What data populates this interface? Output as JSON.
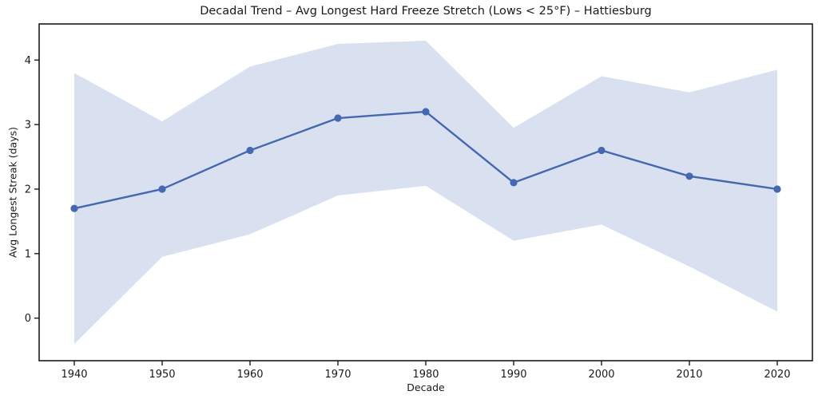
{
  "chart_data": {
    "type": "line",
    "title": "Decadal Trend – Avg Longest Hard Freeze Stretch (Lows < 25°F) – Hattiesburg",
    "xlabel": "Decade",
    "ylabel": "Avg Longest Streak (days)",
    "x": [
      1940,
      1950,
      1960,
      1970,
      1980,
      1990,
      2000,
      2010,
      2020
    ],
    "series": [
      {
        "name": "Avg Longest Streak",
        "values": [
          1.7,
          2.0,
          2.6,
          3.1,
          3.2,
          2.1,
          2.6,
          2.2,
          2.0
        ]
      }
    ],
    "band": {
      "name": "uncertainty-band",
      "upper": [
        3.8,
        3.05,
        3.9,
        4.25,
        4.3,
        2.95,
        3.75,
        3.5,
        3.85
      ],
      "lower": [
        -0.4,
        0.95,
        1.3,
        1.9,
        2.05,
        1.2,
        1.45,
        0.8,
        0.1
      ]
    },
    "xticks": [
      "1940",
      "1950",
      "1960",
      "1970",
      "1980",
      "1990",
      "2000",
      "2010",
      "2020"
    ],
    "yticks": [
      0,
      1,
      2,
      3,
      4
    ],
    "xlim": [
      1936,
      2024
    ],
    "ylim": [
      -0.66,
      4.56
    ],
    "grid": false,
    "legend": "none",
    "marker": "circle",
    "colors": {
      "line": "#4668b0",
      "marker": "#4668b0",
      "band": "#d9e1f0",
      "spine": "#1a1a1a",
      "text": "#1a1a1a"
    }
  }
}
